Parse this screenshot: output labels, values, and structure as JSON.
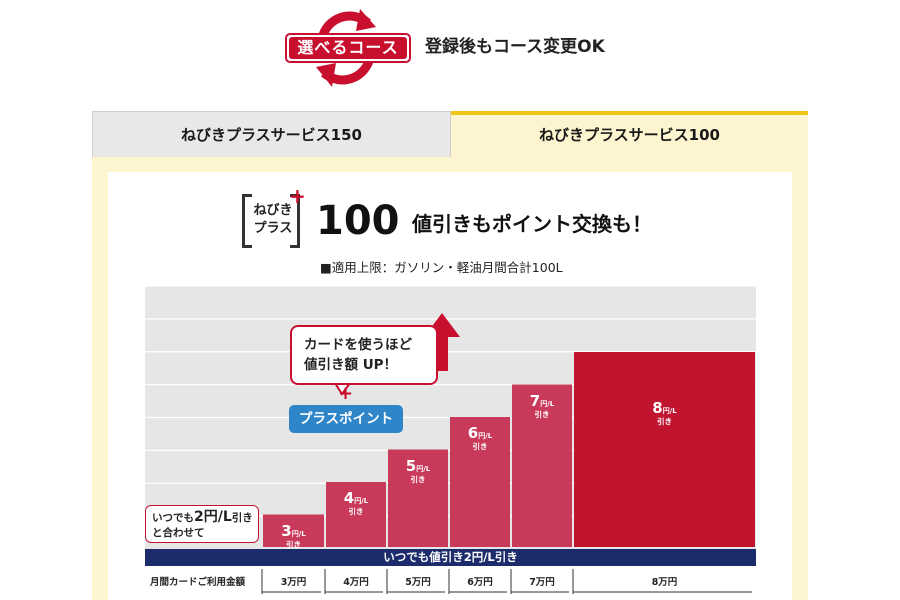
{
  "header": {
    "badge_label": "選べるコース",
    "note": "登録後もコース変更OK",
    "cycle_icon": "refresh-cycle-icon",
    "accent_color": "#c8102e"
  },
  "tabs": [
    {
      "label": "ねびきプラスサービス150",
      "selected": false
    },
    {
      "label": "ねびきプラスサービス100",
      "selected": true
    }
  ],
  "plan": {
    "logo_line1": "ねびき",
    "logo_line2": "プラス",
    "logo_plus": "+",
    "number": "100",
    "headline": "値引きもポイント交換も！",
    "limit_note": "■適用上限：ガソリン・軽油月間合計100L"
  },
  "chart": {
    "callout_line1": "カードを使うほど",
    "callout_line2": "値引き額 UP！",
    "plus_mark": "+",
    "points_pill": "プラスポイント",
    "combo_line1_pre": "いつでも",
    "combo_line1_big": "2円/L",
    "combo_line1_post": "引き",
    "combo_line2": "と合わせて",
    "base_band": "いつでも値引き2円/L引き",
    "axis_caption": "月間カードご利用金額",
    "unit_yen": "円",
    "unit_l": "L",
    "discount_word": "引き",
    "bar_color": "#c9395a",
    "top_bar_color": "#c0142f",
    "band_color": "#1c2b6b"
  },
  "chart_data": {
    "type": "bar",
    "categories": [
      "3万円",
      "4万円",
      "5万円",
      "6万円",
      "7万円",
      "8万円"
    ],
    "values": [
      3,
      4,
      5,
      6,
      7,
      8
    ],
    "title": "",
    "xlabel": "月間カードご利用金額",
    "ylabel": "",
    "ylim": [
      0,
      8
    ],
    "grid": true
  }
}
